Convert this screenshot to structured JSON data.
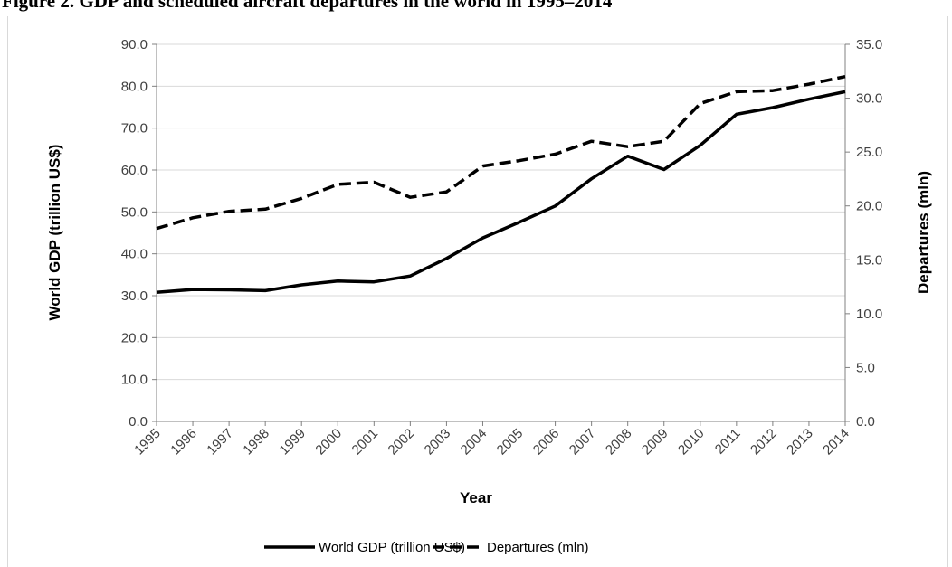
{
  "figure_title": "Figure 2. GDP and scheduled aircraft departures in the world in 1995–2014",
  "chart_data": {
    "type": "line",
    "x": [
      "1995",
      "1996",
      "1997",
      "1998",
      "1999",
      "2000",
      "2001",
      "2002",
      "2003",
      "2004",
      "2005",
      "2006",
      "2007",
      "2008",
      "2009",
      "2010",
      "2011",
      "2012",
      "2013",
      "2014"
    ],
    "xlabel": "Year",
    "ylabel_left": "World GDP (trillion US$)",
    "ylabel_right": "Departures (mln)",
    "ylim_left": [
      0,
      90
    ],
    "ylim_right": [
      0,
      35
    ],
    "yticks_left": [
      "0.0",
      "10.0",
      "20.0",
      "30.0",
      "40.0",
      "50.0",
      "60.0",
      "70.0",
      "80.0",
      "90.0"
    ],
    "yticks_right": [
      "0.0",
      "5.0",
      "10.0",
      "15.0",
      "20.0",
      "25.0",
      "30.0",
      "35.0"
    ],
    "grid": true,
    "legend_position": "bottom",
    "series": [
      {
        "name": "World GDP (trillion US$)",
        "axis": "left",
        "style": "solid",
        "color": "#000000",
        "values": [
          30.8,
          31.5,
          31.4,
          31.2,
          32.6,
          33.5,
          33.3,
          34.7,
          38.9,
          43.8,
          47.5,
          51.4,
          57.9,
          63.3,
          60.1,
          65.9,
          73.3,
          74.9,
          76.9,
          78.7
        ]
      },
      {
        "name": "Departures (mln)",
        "axis": "right",
        "style": "dashed",
        "color": "#000000",
        "values": [
          17.9,
          18.9,
          19.5,
          19.7,
          20.7,
          22.0,
          22.2,
          20.8,
          21.3,
          23.7,
          24.2,
          24.8,
          26.0,
          25.5,
          26.0,
          29.5,
          30.6,
          30.7,
          31.3,
          32.0
        ]
      }
    ]
  }
}
